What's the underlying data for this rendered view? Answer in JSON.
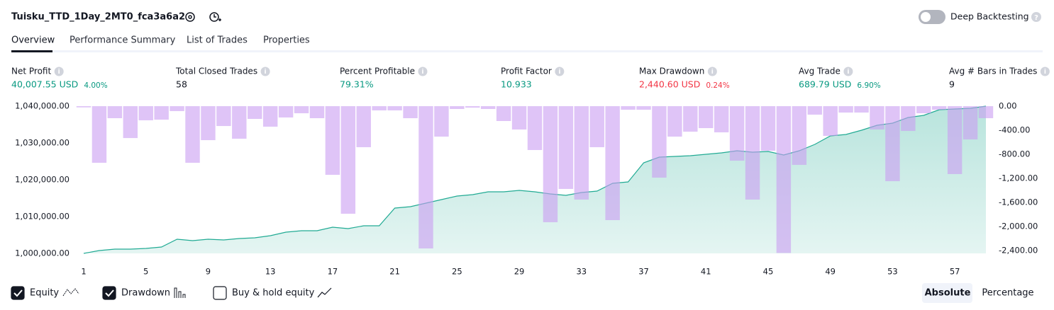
{
  "header": {
    "title": "Tuisku_TTD_1Day_2MT0_fca3a6a2",
    "toggle_label": "Deep Backtesting"
  },
  "tabs": [
    "Overview",
    "Performance Summary",
    "List of Trades",
    "Properties"
  ],
  "metrics": [
    {
      "label": "Net Profit",
      "value": "40,007.55 USD",
      "pct": "4.00%",
      "color": "#089981"
    },
    {
      "label": "Total Closed Trades",
      "value": "58",
      "color": "#131722"
    },
    {
      "label": "Percent Profitable",
      "value": "79.31%",
      "color": "#089981"
    },
    {
      "label": "Profit Factor",
      "value": "10.933",
      "color": "#089981"
    },
    {
      "label": "Max Drawdown",
      "value": "2,440.60 USD",
      "pct": "0.24%",
      "color": "#f23645"
    },
    {
      "label": "Avg Trade",
      "value": "689.79 USD",
      "pct": "6.90%",
      "color": "#089981"
    },
    {
      "label": "Avg # Bars in Trades",
      "value": "9",
      "color": "#131722"
    }
  ],
  "chart_data": {
    "type": "combo",
    "x": [
      1,
      2,
      3,
      4,
      5,
      6,
      7,
      8,
      9,
      10,
      11,
      12,
      13,
      14,
      15,
      16,
      17,
      18,
      19,
      20,
      21,
      22,
      23,
      24,
      25,
      26,
      27,
      28,
      29,
      30,
      31,
      32,
      33,
      34,
      35,
      36,
      37,
      38,
      39,
      40,
      41,
      42,
      43,
      44,
      45,
      46,
      47,
      48,
      49,
      50,
      51,
      52,
      53,
      54,
      55,
      56,
      57,
      58,
      59
    ],
    "xlim": [
      1,
      59
    ],
    "xticks": [
      1,
      5,
      9,
      13,
      17,
      21,
      25,
      29,
      33,
      37,
      41,
      45,
      49,
      53,
      57
    ],
    "ylim": [
      1000000,
      1040000
    ],
    "yticks": [
      {
        "value": 1000000,
        "label": "1,000,000.00"
      },
      {
        "value": 1010000,
        "label": "1,010,000.00"
      },
      {
        "value": 1020000,
        "label": "1,020,000.00"
      },
      {
        "value": 1030000,
        "label": "1,030,000.00"
      },
      {
        "value": 1040000,
        "label": "1,040,000.00"
      }
    ],
    "y2lim": [
      -2400,
      0
    ],
    "y2ticks": [
      {
        "value": 0,
        "label": "0.00"
      },
      {
        "value": -400,
        "label": "-400.00"
      },
      {
        "value": -800,
        "label": "-800.00"
      },
      {
        "value": -1200,
        "label": "-1,200.00"
      },
      {
        "value": -1600,
        "label": "-1,600.00"
      },
      {
        "value": -2000,
        "label": "-2,000.00"
      },
      {
        "value": -2400,
        "label": "-2,400.00"
      }
    ],
    "series": [
      {
        "name": "Equity",
        "type": "area",
        "color": "#22ab94",
        "values": [
          1000000,
          1000770,
          1001150,
          1001150,
          1001350,
          1001730,
          1003850,
          1003460,
          1003850,
          1003650,
          1004040,
          1004230,
          1004810,
          1005770,
          1006150,
          1006150,
          1007120,
          1006730,
          1007500,
          1007500,
          1012310,
          1012690,
          1013650,
          1014620,
          1015580,
          1015960,
          1016730,
          1016730,
          1017120,
          1016730,
          1016150,
          1015770,
          1016540,
          1016920,
          1019040,
          1019420,
          1024620,
          1026150,
          1026350,
          1026540,
          1026920,
          1027310,
          1027880,
          1027500,
          1027690,
          1026730,
          1027880,
          1029620,
          1031920,
          1032310,
          1033460,
          1034810,
          1035380,
          1036920,
          1037500,
          1039040,
          1039230,
          1039420,
          1040007.55
        ]
      },
      {
        "name": "Drawdown",
        "type": "bar",
        "axis": "y2",
        "color": "#c99cf2",
        "values": [
          -20,
          -941,
          -200,
          -530,
          -235,
          -224,
          -82,
          -941,
          -565,
          -330,
          -541,
          -212,
          -341,
          -188,
          -118,
          -200,
          -1141,
          -1788,
          -682,
          -70,
          -70,
          -200,
          -2365,
          -506,
          -47,
          -24,
          -47,
          -247,
          -388,
          -729,
          -1929,
          -1376,
          -1553,
          -682,
          -1894,
          -59,
          -59,
          -1188,
          -506,
          -424,
          -365,
          -435,
          -906,
          -1553,
          -741,
          -2440.6,
          -976,
          -141,
          -494,
          -106,
          -106,
          -388,
          -1247,
          -412,
          -118,
          -59,
          -1129,
          -553,
          -200
        ]
      }
    ]
  },
  "legend_extra": "Buy & hold equity",
  "scale_buttons": [
    "Absolute",
    "Percentage"
  ]
}
